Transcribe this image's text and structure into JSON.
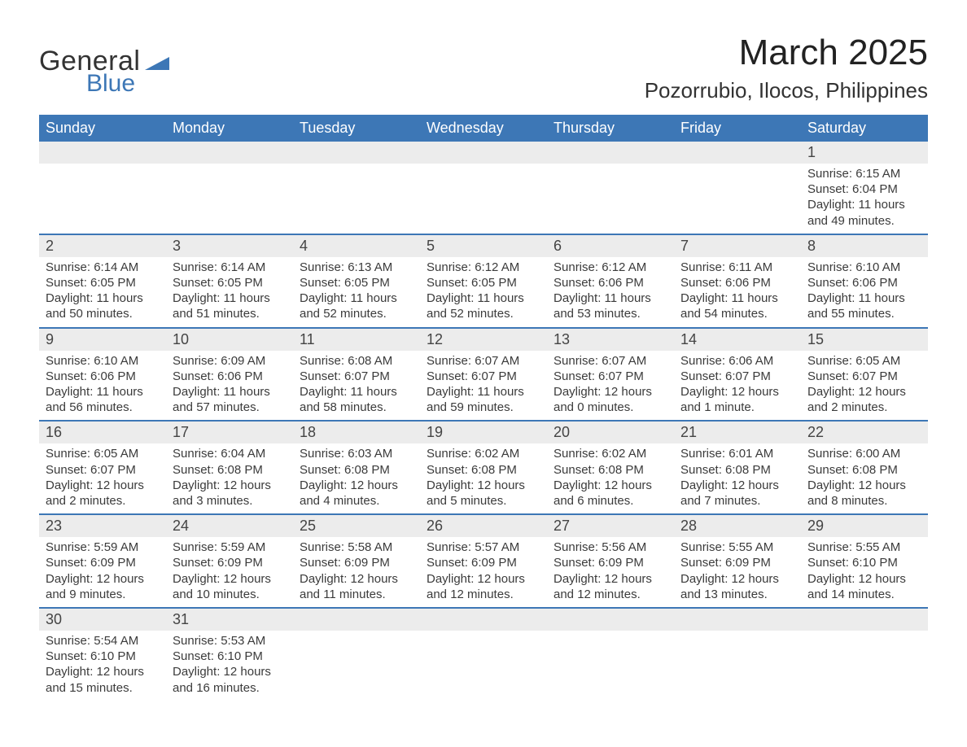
{
  "logo": {
    "general": "General",
    "blue": "Blue",
    "mark_color": "#3d77b6"
  },
  "title": "March 2025",
  "location": "Pozorrubio, Ilocos, Philippines",
  "colors": {
    "header_bg": "#3d77b6",
    "header_text": "#ffffff",
    "daynum_bg": "#ececec",
    "row_divider": "#3d77b6",
    "body_text": "#3b3b3b",
    "page_bg": "#ffffff"
  },
  "typography": {
    "title_fontsize": 44,
    "location_fontsize": 26,
    "weekday_fontsize": 18,
    "body_fontsize": 15
  },
  "weekdays": [
    "Sunday",
    "Monday",
    "Tuesday",
    "Wednesday",
    "Thursday",
    "Friday",
    "Saturday"
  ],
  "weeks": [
    [
      null,
      null,
      null,
      null,
      null,
      null,
      {
        "day": "1",
        "sunrise": "Sunrise: 6:15 AM",
        "sunset": "Sunset: 6:04 PM",
        "dl1": "Daylight: 11 hours",
        "dl2": "and 49 minutes."
      }
    ],
    [
      {
        "day": "2",
        "sunrise": "Sunrise: 6:14 AM",
        "sunset": "Sunset: 6:05 PM",
        "dl1": "Daylight: 11 hours",
        "dl2": "and 50 minutes."
      },
      {
        "day": "3",
        "sunrise": "Sunrise: 6:14 AM",
        "sunset": "Sunset: 6:05 PM",
        "dl1": "Daylight: 11 hours",
        "dl2": "and 51 minutes."
      },
      {
        "day": "4",
        "sunrise": "Sunrise: 6:13 AM",
        "sunset": "Sunset: 6:05 PM",
        "dl1": "Daylight: 11 hours",
        "dl2": "and 52 minutes."
      },
      {
        "day": "5",
        "sunrise": "Sunrise: 6:12 AM",
        "sunset": "Sunset: 6:05 PM",
        "dl1": "Daylight: 11 hours",
        "dl2": "and 52 minutes."
      },
      {
        "day": "6",
        "sunrise": "Sunrise: 6:12 AM",
        "sunset": "Sunset: 6:06 PM",
        "dl1": "Daylight: 11 hours",
        "dl2": "and 53 minutes."
      },
      {
        "day": "7",
        "sunrise": "Sunrise: 6:11 AM",
        "sunset": "Sunset: 6:06 PM",
        "dl1": "Daylight: 11 hours",
        "dl2": "and 54 minutes."
      },
      {
        "day": "8",
        "sunrise": "Sunrise: 6:10 AM",
        "sunset": "Sunset: 6:06 PM",
        "dl1": "Daylight: 11 hours",
        "dl2": "and 55 minutes."
      }
    ],
    [
      {
        "day": "9",
        "sunrise": "Sunrise: 6:10 AM",
        "sunset": "Sunset: 6:06 PM",
        "dl1": "Daylight: 11 hours",
        "dl2": "and 56 minutes."
      },
      {
        "day": "10",
        "sunrise": "Sunrise: 6:09 AM",
        "sunset": "Sunset: 6:06 PM",
        "dl1": "Daylight: 11 hours",
        "dl2": "and 57 minutes."
      },
      {
        "day": "11",
        "sunrise": "Sunrise: 6:08 AM",
        "sunset": "Sunset: 6:07 PM",
        "dl1": "Daylight: 11 hours",
        "dl2": "and 58 minutes."
      },
      {
        "day": "12",
        "sunrise": "Sunrise: 6:07 AM",
        "sunset": "Sunset: 6:07 PM",
        "dl1": "Daylight: 11 hours",
        "dl2": "and 59 minutes."
      },
      {
        "day": "13",
        "sunrise": "Sunrise: 6:07 AM",
        "sunset": "Sunset: 6:07 PM",
        "dl1": "Daylight: 12 hours",
        "dl2": "and 0 minutes."
      },
      {
        "day": "14",
        "sunrise": "Sunrise: 6:06 AM",
        "sunset": "Sunset: 6:07 PM",
        "dl1": "Daylight: 12 hours",
        "dl2": "and 1 minute."
      },
      {
        "day": "15",
        "sunrise": "Sunrise: 6:05 AM",
        "sunset": "Sunset: 6:07 PM",
        "dl1": "Daylight: 12 hours",
        "dl2": "and 2 minutes."
      }
    ],
    [
      {
        "day": "16",
        "sunrise": "Sunrise: 6:05 AM",
        "sunset": "Sunset: 6:07 PM",
        "dl1": "Daylight: 12 hours",
        "dl2": "and 2 minutes."
      },
      {
        "day": "17",
        "sunrise": "Sunrise: 6:04 AM",
        "sunset": "Sunset: 6:08 PM",
        "dl1": "Daylight: 12 hours",
        "dl2": "and 3 minutes."
      },
      {
        "day": "18",
        "sunrise": "Sunrise: 6:03 AM",
        "sunset": "Sunset: 6:08 PM",
        "dl1": "Daylight: 12 hours",
        "dl2": "and 4 minutes."
      },
      {
        "day": "19",
        "sunrise": "Sunrise: 6:02 AM",
        "sunset": "Sunset: 6:08 PM",
        "dl1": "Daylight: 12 hours",
        "dl2": "and 5 minutes."
      },
      {
        "day": "20",
        "sunrise": "Sunrise: 6:02 AM",
        "sunset": "Sunset: 6:08 PM",
        "dl1": "Daylight: 12 hours",
        "dl2": "and 6 minutes."
      },
      {
        "day": "21",
        "sunrise": "Sunrise: 6:01 AM",
        "sunset": "Sunset: 6:08 PM",
        "dl1": "Daylight: 12 hours",
        "dl2": "and 7 minutes."
      },
      {
        "day": "22",
        "sunrise": "Sunrise: 6:00 AM",
        "sunset": "Sunset: 6:08 PM",
        "dl1": "Daylight: 12 hours",
        "dl2": "and 8 minutes."
      }
    ],
    [
      {
        "day": "23",
        "sunrise": "Sunrise: 5:59 AM",
        "sunset": "Sunset: 6:09 PM",
        "dl1": "Daylight: 12 hours",
        "dl2": "and 9 minutes."
      },
      {
        "day": "24",
        "sunrise": "Sunrise: 5:59 AM",
        "sunset": "Sunset: 6:09 PM",
        "dl1": "Daylight: 12 hours",
        "dl2": "and 10 minutes."
      },
      {
        "day": "25",
        "sunrise": "Sunrise: 5:58 AM",
        "sunset": "Sunset: 6:09 PM",
        "dl1": "Daylight: 12 hours",
        "dl2": "and 11 minutes."
      },
      {
        "day": "26",
        "sunrise": "Sunrise: 5:57 AM",
        "sunset": "Sunset: 6:09 PM",
        "dl1": "Daylight: 12 hours",
        "dl2": "and 12 minutes."
      },
      {
        "day": "27",
        "sunrise": "Sunrise: 5:56 AM",
        "sunset": "Sunset: 6:09 PM",
        "dl1": "Daylight: 12 hours",
        "dl2": "and 12 minutes."
      },
      {
        "day": "28",
        "sunrise": "Sunrise: 5:55 AM",
        "sunset": "Sunset: 6:09 PM",
        "dl1": "Daylight: 12 hours",
        "dl2": "and 13 minutes."
      },
      {
        "day": "29",
        "sunrise": "Sunrise: 5:55 AM",
        "sunset": "Sunset: 6:10 PM",
        "dl1": "Daylight: 12 hours",
        "dl2": "and 14 minutes."
      }
    ],
    [
      {
        "day": "30",
        "sunrise": "Sunrise: 5:54 AM",
        "sunset": "Sunset: 6:10 PM",
        "dl1": "Daylight: 12 hours",
        "dl2": "and 15 minutes."
      },
      {
        "day": "31",
        "sunrise": "Sunrise: 5:53 AM",
        "sunset": "Sunset: 6:10 PM",
        "dl1": "Daylight: 12 hours",
        "dl2": "and 16 minutes."
      },
      null,
      null,
      null,
      null,
      null
    ]
  ]
}
